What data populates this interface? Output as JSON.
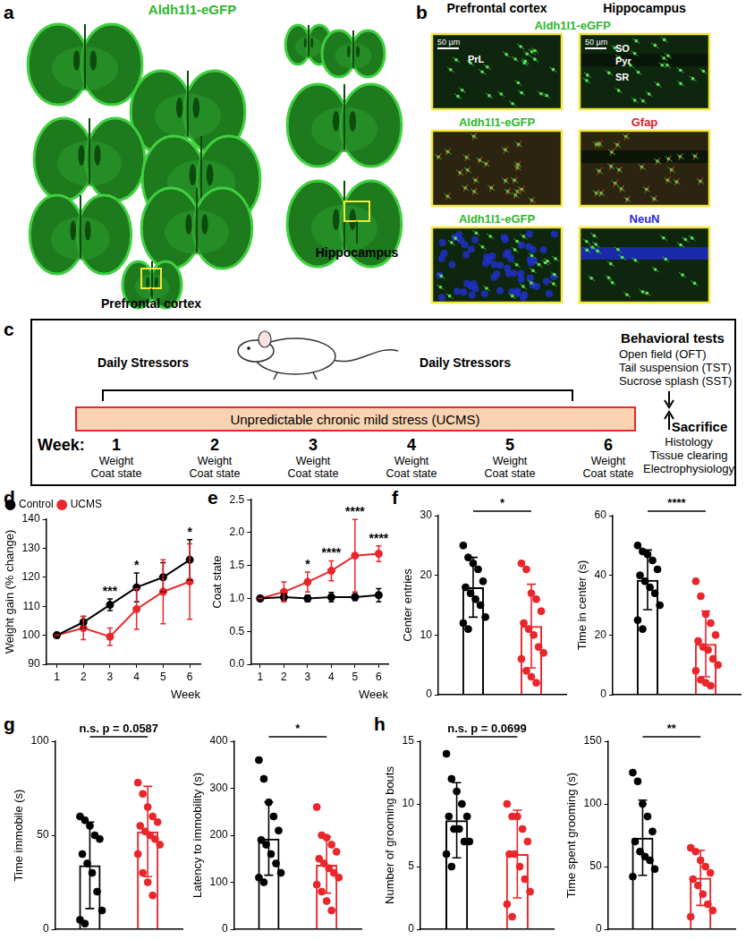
{
  "panel_labels": [
    "a",
    "b",
    "c",
    "d",
    "e",
    "f",
    "g",
    "h"
  ],
  "panel_a": {
    "title": "Aldh1l1-eGFP",
    "title_color": "#2db82d",
    "callouts": [
      "Prefrontal cortex",
      "Hippocampus"
    ]
  },
  "panel_b": {
    "columns": [
      "Prefrontal cortex",
      "Hippocampus"
    ],
    "rows": [
      [
        {
          "text": "Aldh1l1-eGFP",
          "color": "#2db82d"
        }
      ],
      [
        {
          "text": "Aldh1l1-eGFP",
          "color": "#2db82d"
        },
        {
          "text": "Gfap",
          "color": "#e0202a"
        }
      ],
      [
        {
          "text": "Aldh1l1-eGFP",
          "color": "#2db82d"
        },
        {
          "text": "NeuN",
          "color": "#2b2bd6"
        }
      ]
    ],
    "region_left": [
      "PrL"
    ],
    "region_right": [
      "SO",
      "Pyr",
      "SR"
    ],
    "scale_bar": "50 µm"
  },
  "panel_c": {
    "stressors": [
      "Daily Stressors",
      "Daily Stressors"
    ],
    "protocol": "Unpredictable chronic mild stress (UCMS)",
    "behavior": {
      "title": "Behavioral tests",
      "items": [
        "Open field (OFT)",
        "Tail suspension (TST)",
        "Sucrose splash (SST)"
      ]
    },
    "sacrifice": {
      "title": "Sacrifice",
      "items": [
        "Histology",
        "Tissue clearing",
        "Electrophysiology"
      ]
    },
    "week_label": "Week:",
    "weeks": [
      1,
      2,
      3,
      4,
      5,
      6
    ],
    "week_items": [
      "Weight",
      "Coat state"
    ]
  },
  "chart_data": [
    {
      "type": "line",
      "ylabel": "Weight gain (% change)",
      "xlabel": "Week",
      "x": [
        1,
        2,
        3,
        4,
        5,
        6
      ],
      "xlim": [
        0.6,
        6.4
      ],
      "xticks": [
        1,
        2,
        3,
        4,
        5,
        6
      ],
      "ylim": [
        90,
        140
      ],
      "yticks": [
        90,
        100,
        110,
        120,
        130,
        140
      ],
      "grid": false,
      "legend": "top-left",
      "series": [
        {
          "name": "Control",
          "color": "#000000",
          "marker": "circle",
          "values": [
            100,
            104.5,
            110.5,
            116.5,
            120,
            126
          ],
          "error": [
            0,
            2,
            2,
            5,
            5,
            7
          ]
        },
        {
          "name": "UCMS",
          "color": "#e8262b",
          "marker": "circle",
          "values": [
            100,
            102.5,
            99.5,
            109,
            115,
            118.5
          ],
          "error": [
            0,
            4,
            3,
            7,
            11,
            13
          ]
        }
      ],
      "annotations": [
        {
          "x": 3,
          "text": "***"
        },
        {
          "x": 4,
          "text": "*"
        },
        {
          "x": 6,
          "text": "*"
        }
      ]
    },
    {
      "type": "line",
      "ylabel": "Coat state",
      "xlabel": "Week",
      "x": [
        1,
        2,
        3,
        4,
        5,
        6
      ],
      "xlim": [
        0.6,
        6.4
      ],
      "xticks": [
        1,
        2,
        3,
        4,
        5,
        6
      ],
      "ylim": [
        0,
        2.5
      ],
      "yticks": [
        {
          "value": 0,
          "label": "0.0"
        },
        0.5,
        {
          "value": 1,
          "label": "1.0"
        },
        1.5,
        {
          "value": 2,
          "label": "2.0"
        },
        2.5
      ],
      "grid": false,
      "series": [
        {
          "color": "#000000",
          "marker": "circle",
          "values": [
            1,
            1.02,
            1.0,
            1.02,
            1.02,
            1.05
          ],
          "error": [
            0,
            0.05,
            0.05,
            0.07,
            0.05,
            0.1
          ]
        },
        {
          "color": "#e8262b",
          "marker": "circle",
          "values": [
            1,
            1.1,
            1.25,
            1.42,
            1.65,
            1.68
          ],
          "error": [
            0,
            0.15,
            0.15,
            0.15,
            0.55,
            0.12
          ]
        }
      ],
      "annotations": [
        {
          "x": 3,
          "text": "*"
        },
        {
          "x": 4,
          "text": "****"
        },
        {
          "x": 5,
          "text": "****"
        },
        {
          "x": 6,
          "text": "****"
        }
      ]
    },
    {
      "type": "bar",
      "ylabel": "Center entries",
      "values": [
        18,
        11.5
      ],
      "error": [
        5,
        7
      ],
      "points": [
        [
          25,
          23,
          22,
          21,
          19,
          18,
          17,
          16,
          15,
          13,
          12,
          11
        ],
        [
          22,
          21,
          17,
          16,
          14,
          12,
          11,
          10,
          8,
          7,
          6,
          4,
          3,
          2
        ]
      ],
      "colors": [
        "#000000",
        "#e8262b"
      ],
      "ylim": [
        0,
        30
      ],
      "yticks": [
        0,
        10,
        20,
        30
      ],
      "annotation": "*",
      "tick_labels": "y",
      "grid": false
    },
    {
      "type": "bar",
      "ylabel": "Time in center (s)",
      "values": [
        38.5,
        17
      ],
      "error": [
        10,
        11
      ],
      "points": [
        [
          50,
          48,
          47,
          45,
          42,
          40,
          38,
          36,
          34,
          30,
          25,
          22
        ],
        [
          38,
          33,
          27,
          24,
          20,
          18,
          16,
          15,
          12,
          10,
          8,
          5,
          4,
          3
        ]
      ],
      "colors": [
        "#000000",
        "#e8262b"
      ],
      "ylim": [
        0,
        60
      ],
      "yticks": [
        0,
        20,
        40,
        60
      ],
      "annotation": "****",
      "tick_labels": "y",
      "grid": false
    },
    {
      "type": "bar",
      "ylabel": "Time immobile (s)",
      "values": [
        34,
        52
      ],
      "error": [
        23,
        24
      ],
      "points": [
        [
          60,
          58,
          55,
          50,
          48,
          40,
          35,
          30,
          20,
          10,
          5,
          3
        ],
        [
          78,
          72,
          65,
          60,
          57,
          55,
          52,
          50,
          48,
          45,
          40,
          30,
          25,
          18
        ]
      ],
      "colors": [
        "#000000",
        "#e8262b"
      ],
      "ylim": [
        0,
        100
      ],
      "yticks": [
        0,
        50,
        100
      ],
      "annotation": "n.s. p = 0.0587",
      "tick_labels": "y",
      "grid": false
    },
    {
      "type": "bar",
      "ylabel": "Latency to immobility (s)",
      "values": [
        193,
        137
      ],
      "error": [
        78,
        60
      ],
      "points": [
        [
          360,
          320,
          270,
          240,
          210,
          190,
          180,
          160,
          140,
          120,
          110,
          100
        ],
        [
          260,
          200,
          195,
          180,
          165,
          150,
          140,
          130,
          120,
          110,
          95,
          80,
          60,
          40
        ]
      ],
      "colors": [
        "#000000",
        "#e8262b"
      ],
      "ylim": [
        0,
        400
      ],
      "yticks": [
        0,
        100,
        200,
        300,
        400
      ],
      "annotation": "*",
      "tick_labels": "y",
      "grid": false
    },
    {
      "type": "bar",
      "ylabel": "Number of grooming bouts",
      "values": [
        8.7,
        6
      ],
      "error": [
        3,
        3.5
      ],
      "points": [
        [
          14,
          12,
          11,
          10,
          9,
          9,
          8,
          8,
          7,
          7,
          6,
          5
        ],
        [
          10,
          9,
          9,
          8,
          7,
          6,
          6,
          5,
          4,
          3,
          2,
          1
        ]
      ],
      "colors": [
        "#000000",
        "#e8262b"
      ],
      "ylim": [
        0,
        15
      ],
      "yticks": [
        0,
        5,
        10,
        15
      ],
      "annotation": "n.s. p = 0.0699",
      "tick_labels": "y",
      "grid": false
    },
    {
      "type": "bar",
      "ylabel": "Time spent grooming (s)",
      "values": [
        73,
        41
      ],
      "error": [
        30,
        22
      ],
      "points": [
        [
          125,
          118,
          100,
          90,
          78,
          70,
          62,
          58,
          55,
          48,
          42
        ],
        [
          65,
          62,
          55,
          50,
          45,
          40,
          35,
          28,
          20,
          15,
          10
        ]
      ],
      "colors": [
        "#000000",
        "#e8262b"
      ],
      "ylim": [
        0,
        150
      ],
      "yticks": [
        0,
        50,
        100,
        150
      ],
      "annotation": "**",
      "tick_labels": "y",
      "grid": false
    }
  ]
}
